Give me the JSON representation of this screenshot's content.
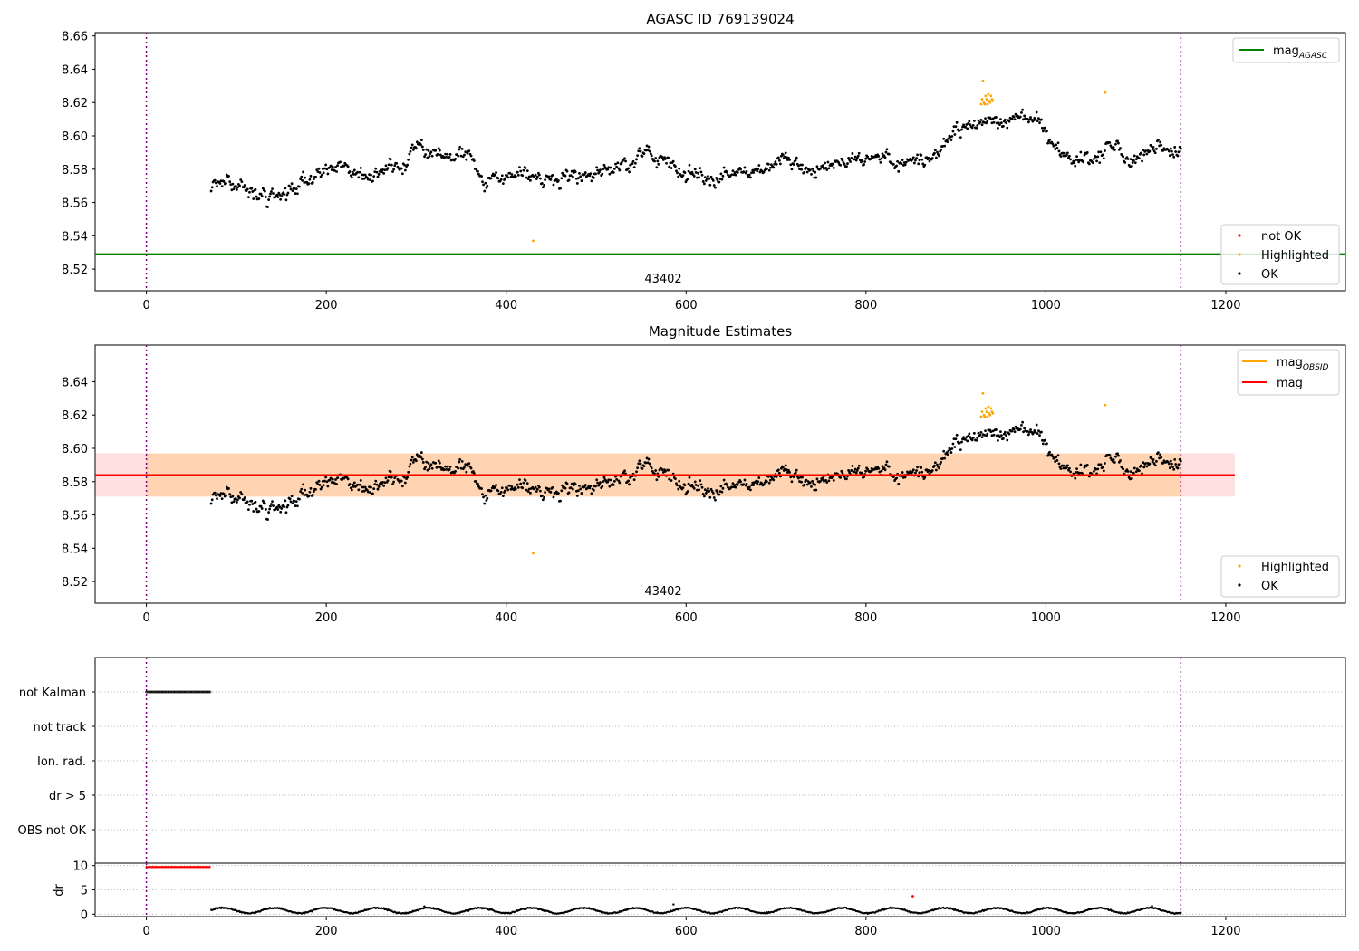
{
  "chart_data": [
    {
      "type": "scatter",
      "title": "AGASC ID 769139024",
      "xlim": [
        -57,
        1333
      ],
      "ylim": [
        8.507,
        8.662
      ],
      "xticks": [
        0,
        200,
        400,
        600,
        800,
        1000,
        1200
      ],
      "yticks": [
        8.52,
        8.54,
        8.56,
        8.58,
        8.6,
        8.62,
        8.64,
        8.66
      ],
      "ytick_decimals": 2,
      "vlines": [
        0,
        1150
      ],
      "annotation": {
        "text": "43402",
        "x": 575
      },
      "mag_agasc": 8.529,
      "highlighted_points": [
        [
          430,
          8.537
        ],
        [
          928,
          8.619
        ],
        [
          929,
          8.622
        ],
        [
          930,
          8.633
        ],
        [
          931,
          8.62
        ],
        [
          932,
          8.619
        ],
        [
          933,
          8.624
        ],
        [
          934,
          8.622
        ],
        [
          935,
          8.619
        ],
        [
          936,
          8.625
        ],
        [
          937,
          8.621
        ],
        [
          938,
          8.62
        ],
        [
          939,
          8.624
        ],
        [
          940,
          8.622
        ],
        [
          941,
          8.621
        ],
        [
          1066,
          8.626
        ]
      ],
      "legend_top": {
        "position": "top-right",
        "entries": [
          {
            "main": "mag",
            "sub": "AGASC",
            "color": "#008000"
          }
        ]
      },
      "legend_bottom": {
        "position": "bottom-right",
        "entries": [
          {
            "label": "not OK",
            "color": "#ff0000"
          },
          {
            "label": "Highlighted",
            "color": "#ffa500"
          },
          {
            "label": "OK",
            "color": "#000000"
          }
        ]
      },
      "ok_series_trend": {
        "x": [
          72,
          90,
          110,
          130,
          150,
          170,
          200,
          240,
          280,
          300,
          320,
          340,
          360,
          380,
          400,
          420,
          440,
          460,
          480,
          500,
          520,
          540,
          560,
          580,
          600,
          620,
          640,
          660,
          680,
          700,
          720,
          740,
          760,
          780,
          800,
          820,
          840,
          860,
          880,
          900,
          920,
          935,
          950,
          970,
          990,
          1010,
          1030,
          1050,
          1070,
          1090,
          1110,
          1130,
          1150
        ],
        "y": [
          8.568,
          8.573,
          8.567,
          8.561,
          8.562,
          8.572,
          8.58,
          8.577,
          8.577,
          8.594,
          8.591,
          8.592,
          8.584,
          8.575,
          8.576,
          8.579,
          8.573,
          8.574,
          8.575,
          8.576,
          8.581,
          8.585,
          8.592,
          8.585,
          8.574,
          8.576,
          8.578,
          8.579,
          8.58,
          8.583,
          8.582,
          8.581,
          8.582,
          8.585,
          8.587,
          8.59,
          8.582,
          8.585,
          8.592,
          8.604,
          8.608,
          8.612,
          8.607,
          8.608,
          8.609,
          8.59,
          8.587,
          8.585,
          8.6,
          8.584,
          8.587,
          8.593,
          8.592
        ]
      }
    },
    {
      "type": "scatter",
      "title": "Magnitude Estimates",
      "xlim": [
        -57,
        1333
      ],
      "ylim": [
        8.507,
        8.662
      ],
      "xticks": [
        0,
        200,
        400,
        600,
        800,
        1000,
        1200
      ],
      "yticks": [
        8.52,
        8.54,
        8.56,
        8.58,
        8.6,
        8.62,
        8.64
      ],
      "ytick_decimals": 2,
      "vlines": [
        0,
        1150
      ],
      "annotation": {
        "text": "43402",
        "x": 575
      },
      "mag": 8.584,
      "mag_obsid": 8.584,
      "mag_band": [
        8.571,
        8.597
      ],
      "band_extent": [
        -57,
        1210
      ],
      "obsid_band_extent": [
        0,
        1150
      ],
      "legend_top": {
        "position": "top-right",
        "entries": [
          {
            "main": "mag",
            "sub": "OBSID",
            "color": "#ffa500"
          },
          {
            "main": "mag",
            "sub": "",
            "color": "#ff0000"
          }
        ]
      },
      "legend_bottom": {
        "position": "bottom-right",
        "entries": [
          {
            "label": "Highlighted",
            "color": "#ffa500"
          },
          {
            "label": "OK",
            "color": "#000000"
          }
        ]
      }
    },
    {
      "type": "scatter",
      "categories": [
        "not Kalman",
        "not track",
        "Ion. rad.",
        "dr > 5",
        "OBS not OK"
      ],
      "xlim": [
        -57,
        1333
      ],
      "flag_points": [
        {
          "category": "not Kalman",
          "x_range": [
            0,
            71
          ]
        }
      ],
      "vlines": [
        0,
        1150
      ]
    },
    {
      "type": "scatter",
      "ylabel": "dr",
      "xlim": [
        -57,
        1333
      ],
      "ylim": [
        -0.5,
        10.5
      ],
      "xticks": [
        0,
        200,
        400,
        600,
        800,
        1000,
        1200
      ],
      "yticks": [
        0,
        5,
        10
      ],
      "vlines": [
        0,
        1150
      ],
      "not_ok_points": {
        "x_range": [
          0,
          71
        ],
        "y": 9.7
      },
      "outlier_points": [
        [
          852,
          3.7
        ]
      ],
      "spikes": [
        [
          586,
          2.0
        ],
        [
          309,
          1.6
        ],
        [
          1118,
          1.7
        ]
      ]
    }
  ]
}
